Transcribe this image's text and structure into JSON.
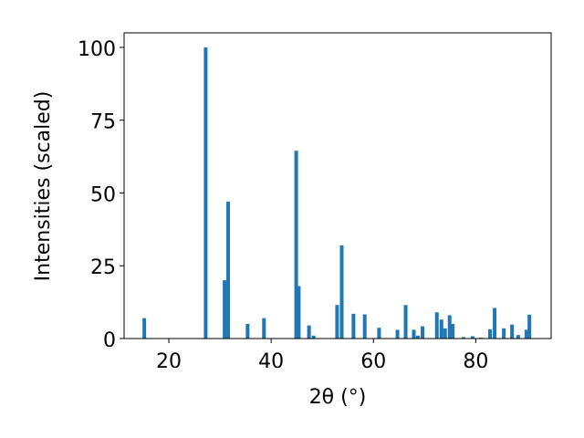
{
  "chart_data": {
    "type": "bar",
    "xlabel": "2θ (°)",
    "ylabel": "Intensities (scaled)",
    "x": [
      15.2,
      27.2,
      30.9,
      31.6,
      35.4,
      38.6,
      44.9,
      45.4,
      47.4,
      48.3,
      52.9,
      53.8,
      56.1,
      58.3,
      61.1,
      64.7,
      66.3,
      67.9,
      68.7,
      69.6,
      72.4,
      73.3,
      74.0,
      74.9,
      75.5,
      77.6,
      79.4,
      81.0,
      82.8,
      83.7,
      85.5,
      87.1,
      88.3,
      89.9,
      90.5
    ],
    "values": [
      7,
      100,
      20,
      47,
      5,
      7,
      64.5,
      18,
      4.5,
      1,
      11.5,
      32,
      8.5,
      8.3,
      3.7,
      3,
      11.5,
      3,
      1,
      4.2,
      9,
      6.5,
      3.5,
      8,
      5,
      0.5,
      0.8,
      0.3,
      3.2,
      10.5,
      3.5,
      4.8,
      1.2,
      3,
      8.2
    ],
    "color": "#1f77b4",
    "xlim": [
      11.25,
      94.75
    ],
    "ylim": [
      0,
      105
    ],
    "xticks": [
      20,
      40,
      60,
      80
    ],
    "yticks": [
      0,
      25,
      50,
      75,
      100
    ]
  }
}
